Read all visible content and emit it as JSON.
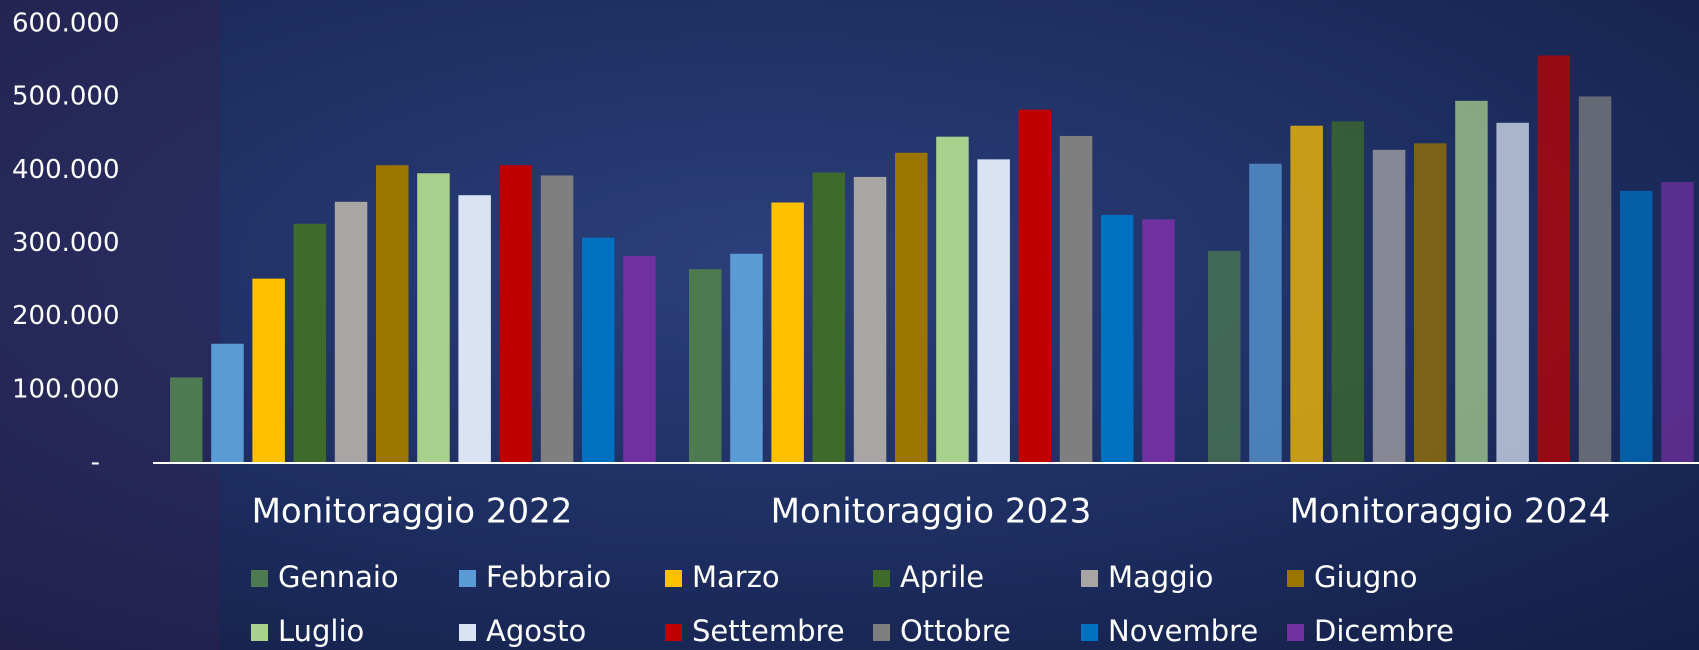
{
  "chart_data": {
    "type": "bar",
    "categories": [
      "Monitoraggio 2022",
      "Monitoraggio 2023",
      "Monitoraggio 2024"
    ],
    "series": [
      {
        "name": "Gennaio",
        "color": "#4e7a52",
        "values": [
          117000,
          265000,
          290000
        ]
      },
      {
        "name": "Febbraio",
        "color": "#5b9bd5",
        "values": [
          163000,
          286000,
          409000
        ]
      },
      {
        "name": "Marzo",
        "color": "#ffc000",
        "values": [
          252000,
          356000,
          461000
        ]
      },
      {
        "name": "Aprile",
        "color": "#3f6b2a",
        "values": [
          327000,
          397000,
          467000
        ]
      },
      {
        "name": "Maggio",
        "color": "#aaa5a5",
        "values": [
          357000,
          391000,
          428000
        ]
      },
      {
        "name": "Giugno",
        "color": "#9c7500",
        "values": [
          407000,
          424000,
          437000
        ]
      },
      {
        "name": "Luglio",
        "color": "#a9d18e",
        "values": [
          396000,
          446000,
          495000
        ]
      },
      {
        "name": "Agosto",
        "color": "#dae3f3",
        "values": [
          366000,
          415000,
          465000
        ]
      },
      {
        "name": "Settembre",
        "color": "#c00000",
        "values": [
          407000,
          483000,
          557000
        ]
      },
      {
        "name": "Ottobre",
        "color": "#7f7f7f",
        "values": [
          393000,
          447000,
          501000
        ]
      },
      {
        "name": "Novembre",
        "color": "#0070c0",
        "values": [
          308000,
          339000,
          372000
        ]
      },
      {
        "name": "Dicembre",
        "color": "#7030a0",
        "values": [
          283000,
          333000,
          384000
        ]
      }
    ],
    "ylim": [
      0,
      600000
    ],
    "yticks": [
      {
        "value": 0,
        "label": "-"
      },
      {
        "value": 100000,
        "label": "100.000"
      },
      {
        "value": 200000,
        "label": "200.000"
      },
      {
        "value": 300000,
        "label": "300.000"
      },
      {
        "value": 400000,
        "label": "400.000"
      },
      {
        "value": 500000,
        "label": "500.000"
      },
      {
        "value": 600000,
        "label": "600.000"
      }
    ],
    "grid": false
  }
}
